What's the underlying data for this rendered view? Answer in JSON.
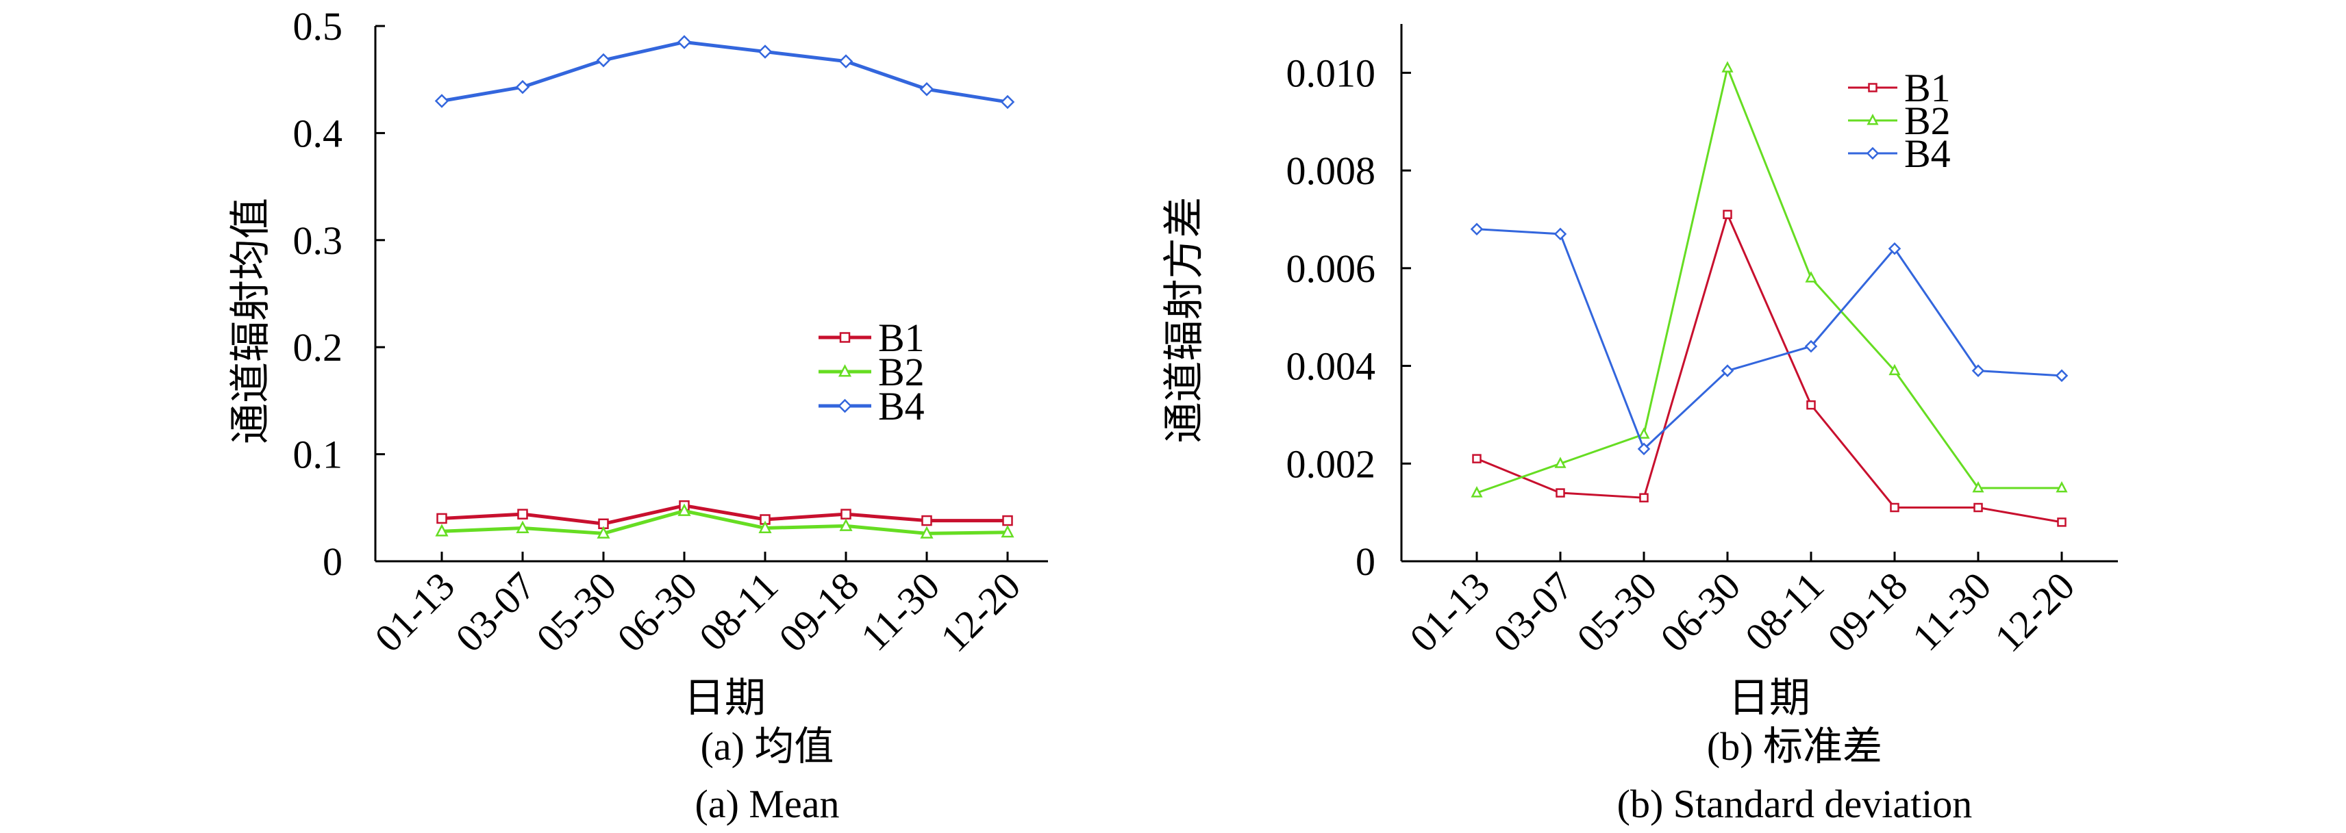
{
  "chart_data": [
    {
      "type": "line",
      "title": "",
      "xlabel": "日期",
      "ylabel": "通道辐射均值",
      "caption_cn": "(a) 均值",
      "caption_en": "(a) Mean",
      "categories": [
        "01-13",
        "03-07",
        "05-30",
        "06-30",
        "08-11",
        "09-18",
        "11-30",
        "12-20"
      ],
      "ylim": [
        0,
        0.5
      ],
      "yticks": [
        0,
        0.1,
        0.2,
        0.3,
        0.4,
        0.5
      ],
      "ytick_labels": [
        "0",
        "0.1",
        "0.2",
        "0.3",
        "0.4",
        "0.5"
      ],
      "legend_position": "center-right",
      "series": [
        {
          "name": "B1",
          "color": "#c8102e",
          "marker": "square",
          "values": [
            0.04,
            0.044,
            0.035,
            0.052,
            0.039,
            0.044,
            0.038,
            0.038
          ]
        },
        {
          "name": "B2",
          "color": "#66dd22",
          "marker": "triangle",
          "values": [
            0.028,
            0.031,
            0.026,
            0.047,
            0.031,
            0.033,
            0.026,
            0.027
          ]
        },
        {
          "name": "B4",
          "color": "#3366dd",
          "marker": "diamond",
          "values": [
            0.43,
            0.443,
            0.468,
            0.485,
            0.476,
            0.467,
            0.441,
            0.429
          ]
        }
      ]
    },
    {
      "type": "line",
      "title": "",
      "xlabel": "日期",
      "ylabel": "通道辐射方差",
      "caption_cn": "(b) 标准差",
      "caption_en": "(b) Standard deviation",
      "categories": [
        "01-13",
        "03-07",
        "05-30",
        "06-30",
        "08-11",
        "09-18",
        "11-30",
        "12-20"
      ],
      "ylim": [
        0,
        0.011
      ],
      "yticks": [
        0,
        0.002,
        0.004,
        0.006,
        0.008,
        0.01
      ],
      "ytick_labels": [
        "0",
        "0.002",
        "0.004",
        "0.006",
        "0.008",
        "0.010"
      ],
      "legend_position": "top-right",
      "series": [
        {
          "name": "B1",
          "color": "#c8102e",
          "marker": "square",
          "values": [
            0.0021,
            0.0014,
            0.0013,
            0.0071,
            0.0032,
            0.0011,
            0.0011,
            0.0008
          ]
        },
        {
          "name": "B2",
          "color": "#66dd22",
          "marker": "triangle",
          "values": [
            0.0014,
            0.002,
            0.0026,
            0.0101,
            0.0058,
            0.0039,
            0.0015,
            0.0015
          ]
        },
        {
          "name": "B4",
          "color": "#3366dd",
          "marker": "diamond",
          "values": [
            0.0068,
            0.0067,
            0.0023,
            0.0039,
            0.0044,
            0.0064,
            0.0039,
            0.0038
          ]
        }
      ]
    }
  ]
}
